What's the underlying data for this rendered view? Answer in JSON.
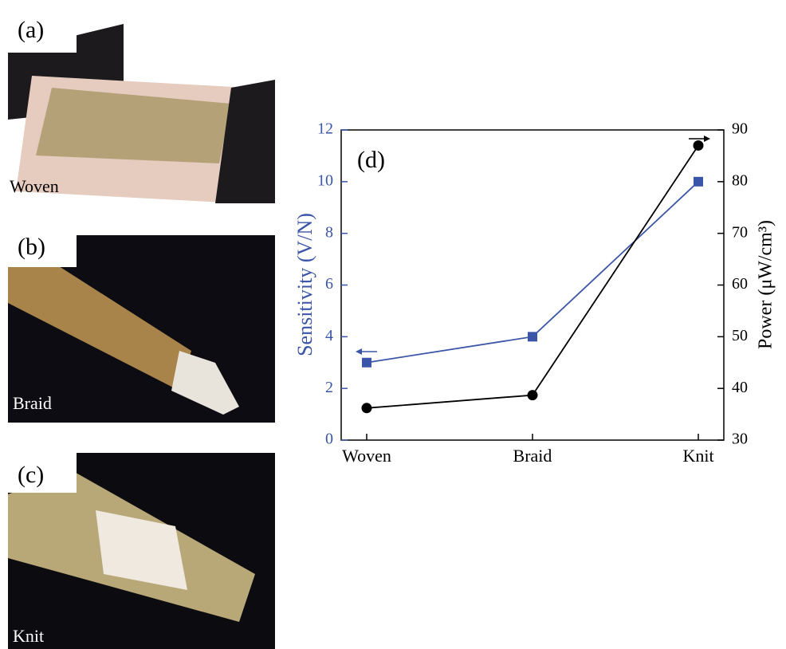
{
  "panels": [
    {
      "label": "(a)",
      "caption": "Woven"
    },
    {
      "label": "(b)",
      "caption": "Braid"
    },
    {
      "label": "(c)",
      "caption": "Knit"
    }
  ],
  "chart_data": {
    "type": "line",
    "panel_label": "(d)",
    "categories": [
      "Woven",
      "Braid",
      "Knit"
    ],
    "ylabel": "Sensitivity (V/N)",
    "y2label": "Power (μW/cm³)",
    "series": [
      {
        "color": "#3b55a8",
        "marker": "square",
        "values": [
          3,
          4,
          10
        ]
      },
      {
        "color": "#000000",
        "marker": "circle",
        "axis": "y2",
        "values": [
          36.2,
          38.7,
          87
        ]
      }
    ],
    "ylim": [
      0,
      12
    ],
    "yticks": [
      0,
      2,
      4,
      6,
      8,
      10,
      12
    ],
    "y2lim": [
      30,
      90
    ],
    "y2ticks": [
      30,
      40,
      50,
      60,
      70,
      80,
      90
    ]
  }
}
